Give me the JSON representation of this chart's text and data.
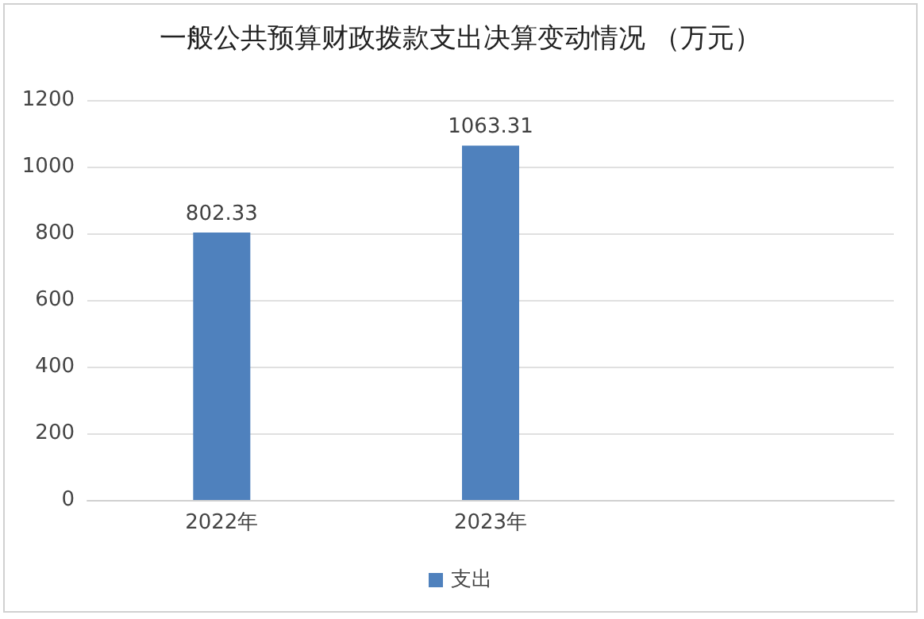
{
  "chart_data": {
    "type": "bar",
    "title": "一般公共预算财政拨款支出决算变动情况 （万元）",
    "categories": [
      "2022年",
      "2023年",
      null
    ],
    "series": [
      {
        "name": "支出",
        "color": "#4f81bd",
        "values": [
          802.33,
          1063.31,
          null
        ]
      }
    ],
    "ylim": [
      0,
      1200
    ],
    "yticks": [
      0,
      200,
      400,
      600,
      800,
      1000,
      1200
    ],
    "grid": "y",
    "legend": "bottom",
    "data_labels": true
  }
}
